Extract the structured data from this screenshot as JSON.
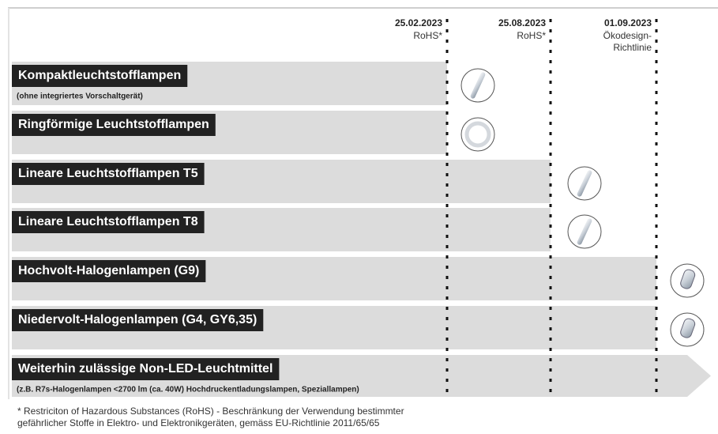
{
  "columns": [
    {
      "date": "25.02.2023",
      "note": [
        "RoHS*"
      ]
    },
    {
      "date": "25.08.2023",
      "note": [
        "RoHS*"
      ]
    },
    {
      "date": "01.09.2023",
      "note": [
        "Ökodesign-",
        "Richtlinie"
      ]
    }
  ],
  "rows": [
    {
      "label": "Kompaktleuchtstofflampen",
      "sublabel": "(ohne integriertes Vorschaltgerät)"
    },
    {
      "label": "Ringförmige Leuchtstofflampen"
    },
    {
      "label": "Lineare Leuchtstofflampen T5"
    },
    {
      "label": "Lineare Leuchtstofflampen T8"
    },
    {
      "label": "Hochvolt-Halogenlampen (G9)"
    },
    {
      "label": "Niedervolt-Halogenlampen (G4, GY6,35)"
    },
    {
      "label": "Weiterhin zulässige Non-LED-Leuchtmittel",
      "sublabel": "(z.B. R7s-Halogenlampen <2700 lm (ca. 40W) Hochdruckentladungslampen, Speziallampen)"
    }
  ],
  "footnote": [
    "* Restriciton of Hazardous Substances (RoHS) - Beschränkung der Verwendung bestimmter",
    "gefährlicher Stoffe in Elektro- und Elektronikgeräten, gemäss EU-Richtlinie 2011/65/65"
  ]
}
